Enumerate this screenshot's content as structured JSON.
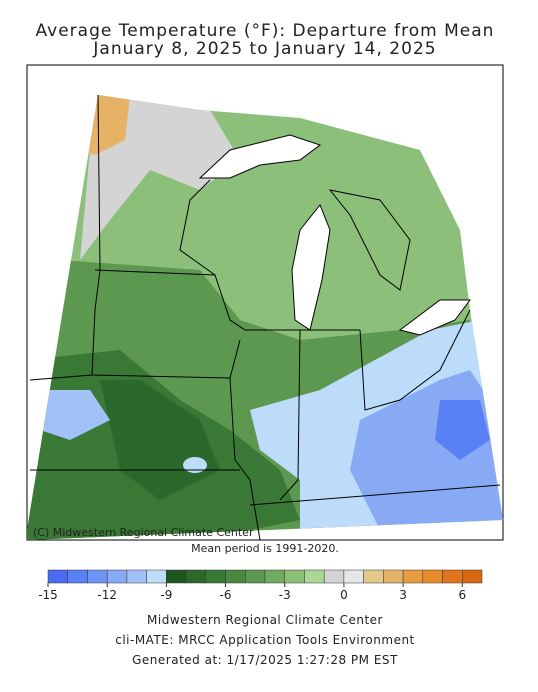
{
  "title": "Average Temperature (°F): Departure from Mean",
  "subtitle": "January 8, 2025 to January 14, 2025",
  "map": {
    "credit": "(C) Midwestern Regional Climate Center"
  },
  "note": "Mean period is 1991-2020.",
  "chart_data": {
    "type": "colorbar",
    "bins": [
      -15,
      -14,
      -13,
      -12,
      -11,
      -10,
      -9,
      -8,
      -7,
      -6,
      -5,
      -4,
      -3,
      -2,
      -1,
      0,
      1,
      2,
      3,
      4,
      5,
      6,
      7
    ],
    "colors": [
      "#4a6cf0",
      "#5a80f5",
      "#6e94f5",
      "#88aaf5",
      "#a2c2f7",
      "#bcdcfa",
      "#1e561e",
      "#2c682c",
      "#3a7836",
      "#4a8842",
      "#5c9850",
      "#72aa62",
      "#8cc07a",
      "#aad696",
      "#d4d4d4",
      "#e6e6e6",
      "#e6c88a",
      "#e6b266",
      "#e69c40",
      "#e88a2a",
      "#e0761a",
      "#d86810"
    ],
    "xticks": [
      -15,
      -12,
      -9,
      -6,
      -3,
      0,
      3,
      6
    ]
  },
  "footer": {
    "lines": [
      "Midwestern Regional Climate Center",
      "cli-MATE: MRCC Application Tools Environment",
      "Generated at: 1/17/2025 1:27:28 PM EST"
    ]
  }
}
